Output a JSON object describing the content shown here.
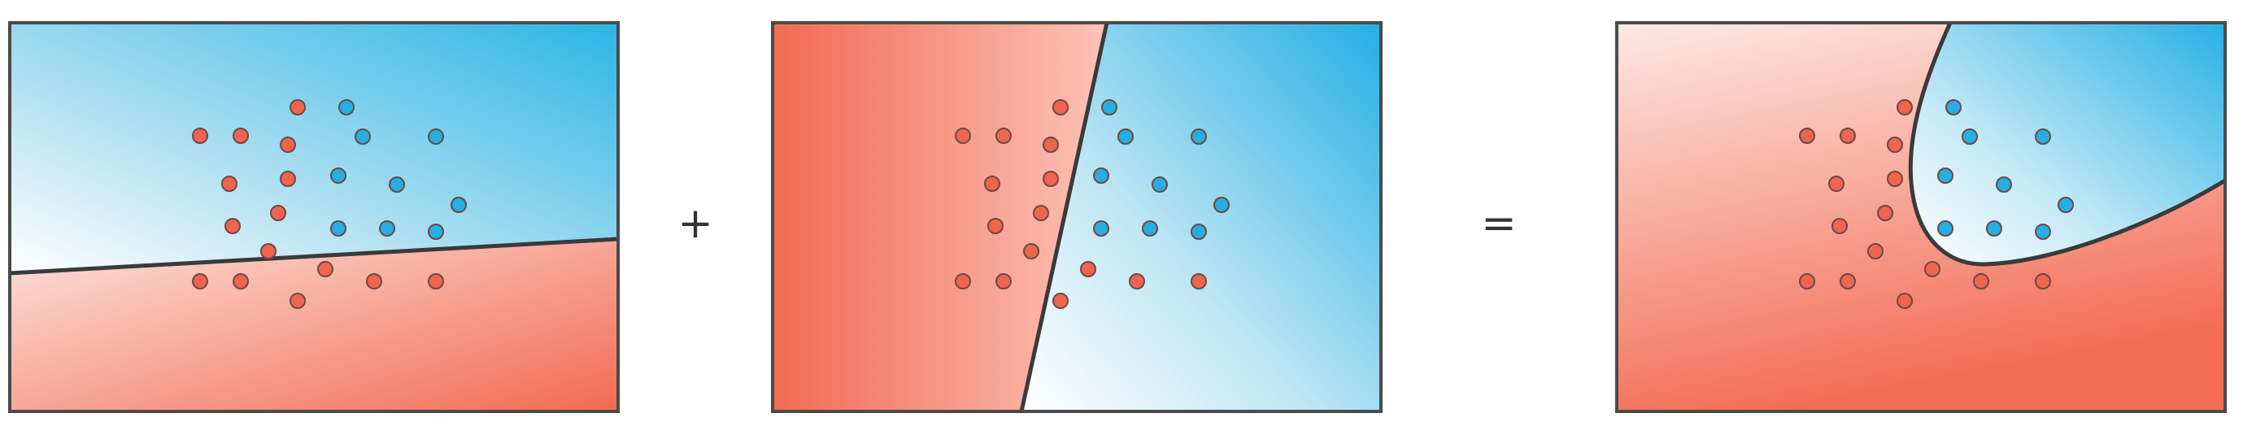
{
  "colors": {
    "red_dot": "#ef6550",
    "blue_dot": "#27aee2",
    "dot_stroke": "#6b4a44",
    "frame": "#4a4a4a"
  },
  "operators": {
    "plus": "+",
    "equals": "="
  },
  "panels": [
    {
      "role": "weak-classifier-horizontal-split",
      "left_region": "blue-above",
      "right_region": "red-below"
    },
    {
      "role": "weak-classifier-vertical-split",
      "left_region": "red-left",
      "right_region": "blue-right"
    },
    {
      "role": "combined-classifier",
      "left_region": "red-outside",
      "right_region": "blue-pocket-top-right"
    }
  ]
}
